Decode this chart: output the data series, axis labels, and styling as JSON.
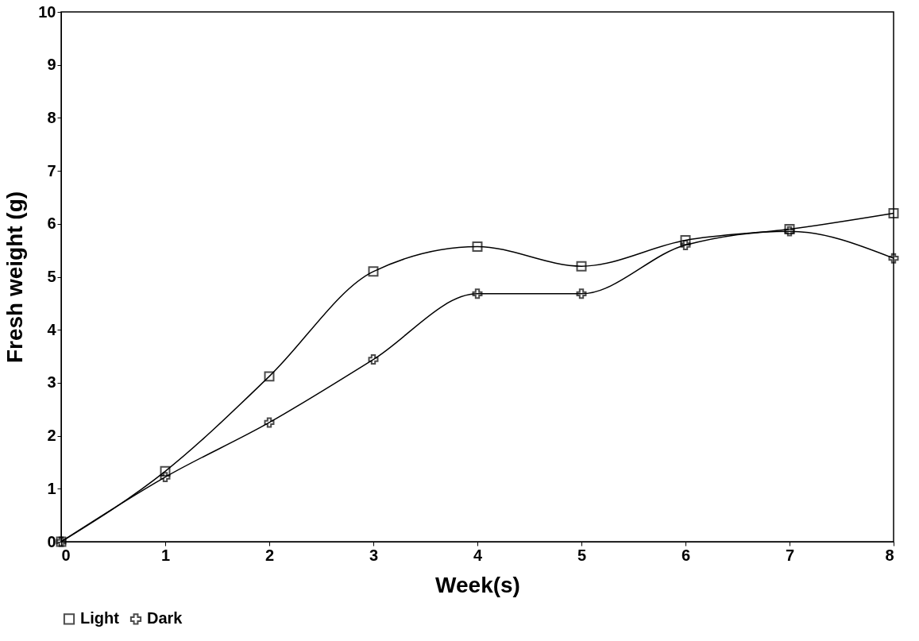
{
  "chart_data": {
    "type": "line",
    "xlabel": "Week(s)",
    "ylabel": "Fresh weight (g)",
    "x": [
      0,
      1,
      2,
      3,
      4,
      5,
      6,
      7,
      8
    ],
    "series": [
      {
        "name": "Light",
        "color": "#000000",
        "marker": "square",
        "values": [
          0,
          1.33,
          3.12,
          5.1,
          5.57,
          5.2,
          5.69,
          5.9,
          6.2
        ]
      },
      {
        "name": "Dark",
        "color": "#000000",
        "marker": "cross",
        "values": [
          0,
          1.22,
          2.25,
          3.44,
          4.68,
          4.68,
          5.6,
          5.86,
          5.35
        ]
      }
    ],
    "xlim": [
      0,
      8
    ],
    "xticks": [
      0,
      1,
      2,
      3,
      4,
      5,
      6,
      7,
      8
    ],
    "ylim": [
      0,
      10
    ],
    "yticks": [
      0,
      1,
      2,
      3,
      4,
      5,
      6,
      7,
      8,
      9,
      10
    ],
    "grid": false,
    "legend": "bottom",
    "line_style": "solid"
  }
}
